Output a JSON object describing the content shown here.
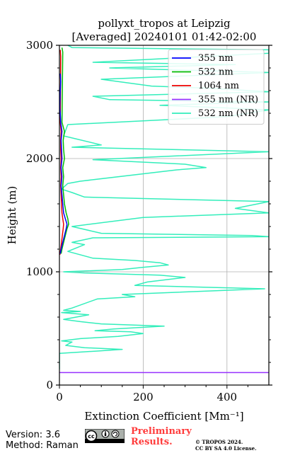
{
  "chart_data": {
    "type": "line",
    "title": "pollyxt_tropos at Leipzig",
    "subtitle": "[Averaged] 20240101 01:42-02:00",
    "xlabel": "Extinction Coefficient [Mm⁻¹]",
    "ylabel": "Height (m)",
    "xlim": [
      0,
      500
    ],
    "ylim": [
      0,
      3000
    ],
    "xticks": [
      "0",
      "200",
      "400"
    ],
    "yticks": [
      "0",
      "1000",
      "2000",
      "3000"
    ],
    "grid": true,
    "legend_position": "top-right",
    "series": [
      {
        "name": "355 nm",
        "color": "#0000ff",
        "points": [
          [
            2,
            1160
          ],
          [
            4,
            1200
          ],
          [
            8,
            1260
          ],
          [
            12,
            1320
          ],
          [
            16,
            1380
          ],
          [
            18,
            1420
          ],
          [
            14,
            1470
          ],
          [
            10,
            1520
          ],
          [
            8,
            1600
          ],
          [
            6,
            1680
          ],
          [
            4,
            1760
          ],
          [
            6,
            1840
          ],
          [
            4,
            1920
          ],
          [
            6,
            2000
          ],
          [
            5,
            2080
          ],
          [
            4,
            2160
          ],
          [
            6,
            2240
          ],
          [
            3,
            2320
          ],
          [
            2,
            2400
          ],
          [
            1,
            2450
          ],
          [
            2,
            2600
          ],
          [
            3,
            2680
          ],
          [
            2,
            2750
          ]
        ]
      },
      {
        "name": "532 nm",
        "color": "#00bb00",
        "points": [
          [
            4,
            1160
          ],
          [
            6,
            1200
          ],
          [
            10,
            1260
          ],
          [
            14,
            1320
          ],
          [
            18,
            1380
          ],
          [
            22,
            1420
          ],
          [
            20,
            1470
          ],
          [
            16,
            1520
          ],
          [
            12,
            1600
          ],
          [
            10,
            1680
          ],
          [
            8,
            1760
          ],
          [
            10,
            1840
          ],
          [
            8,
            1920
          ],
          [
            12,
            2000
          ],
          [
            10,
            2080
          ],
          [
            9,
            2160
          ],
          [
            12,
            2240
          ],
          [
            6,
            2320
          ],
          [
            8,
            2940
          ],
          [
            6,
            2980
          ]
        ]
      },
      {
        "name": "1064 nm",
        "color": "#ee0000",
        "points": [
          [
            1,
            1150
          ],
          [
            3,
            1200
          ],
          [
            5,
            1260
          ],
          [
            7,
            1320
          ],
          [
            9,
            1380
          ],
          [
            10,
            1420
          ],
          [
            8,
            1470
          ],
          [
            6,
            1520
          ],
          [
            5,
            1600
          ],
          [
            4,
            1680
          ],
          [
            3,
            1760
          ],
          [
            4,
            1840
          ],
          [
            3,
            1920
          ],
          [
            4,
            2000
          ],
          [
            3,
            2080
          ],
          [
            3,
            2160
          ],
          [
            4,
            2240
          ],
          [
            2,
            2320
          ],
          [
            3,
            2900
          ],
          [
            2,
            2960
          ]
        ]
      },
      {
        "name": "355 nm (NR)",
        "color": "#9933ff",
        "points": [
          [
            0,
            110
          ],
          [
            500,
            110
          ]
        ]
      },
      {
        "name": "532 nm (NR)",
        "color": "#33eebb",
        "points": [
          [
            0,
            140
          ],
          [
            0,
            280
          ],
          [
            90,
            300
          ],
          [
            130,
            310
          ],
          [
            150,
            315
          ],
          [
            60,
            330
          ],
          [
            15,
            350
          ],
          [
            30,
            380
          ],
          [
            5,
            390
          ],
          [
            50,
            410
          ],
          [
            140,
            430
          ],
          [
            200,
            455
          ],
          [
            170,
            470
          ],
          [
            85,
            480
          ],
          [
            130,
            495
          ],
          [
            250,
            520
          ],
          [
            100,
            540
          ],
          [
            50,
            560
          ],
          [
            10,
            580
          ],
          [
            70,
            620
          ],
          [
            5,
            640
          ],
          [
            50,
            650
          ],
          [
            10,
            660
          ],
          [
            30,
            680
          ],
          [
            90,
            760
          ],
          [
            180,
            780
          ],
          [
            150,
            800
          ],
          [
            490,
            850
          ],
          [
            180,
            880
          ],
          [
            210,
            910
          ],
          [
            300,
            950
          ],
          [
            240,
            970
          ],
          [
            60,
            990
          ],
          [
            10,
            1000
          ],
          [
            150,
            1020
          ],
          [
            200,
            1040
          ],
          [
            260,
            1060
          ],
          [
            240,
            1080
          ],
          [
            180,
            1100
          ],
          [
            80,
            1120
          ],
          [
            20,
            1180
          ],
          [
            60,
            1240
          ],
          [
            30,
            1260
          ],
          [
            80,
            1300
          ],
          [
            500,
            1310
          ],
          [
            460,
            1320
          ],
          [
            100,
            1340
          ],
          [
            30,
            1400
          ],
          [
            200,
            1480
          ],
          [
            500,
            1520
          ],
          [
            420,
            1560
          ],
          [
            500,
            1620
          ],
          [
            60,
            1660
          ],
          [
            30,
            1700
          ],
          [
            5,
            1730
          ],
          [
            20,
            1780
          ],
          [
            50,
            1800
          ],
          [
            280,
            1900
          ],
          [
            350,
            1920
          ],
          [
            300,
            1950
          ],
          [
            80,
            1990
          ],
          [
            500,
            2060
          ],
          [
            30,
            2100
          ],
          [
            100,
            2120
          ],
          [
            10,
            2200
          ],
          [
            20,
            2300
          ],
          [
            400,
            2370
          ],
          [
            500,
            2430
          ],
          [
            380,
            2450
          ],
          [
            240,
            2470
          ],
          [
            500,
            2500
          ],
          [
            120,
            2520
          ],
          [
            80,
            2550
          ],
          [
            500,
            2590
          ],
          [
            360,
            2620
          ],
          [
            220,
            2640
          ],
          [
            100,
            2700
          ],
          [
            500,
            2760
          ],
          [
            120,
            2800
          ],
          [
            420,
            2830
          ],
          [
            80,
            2850
          ],
          [
            500,
            2930
          ],
          [
            500,
            2960
          ],
          [
            30,
            2980
          ],
          [
            20,
            3000
          ]
        ]
      }
    ]
  },
  "footer": {
    "version": "Version: 3.6",
    "method": "Method: Raman",
    "prelim_line1": "Preliminary",
    "prelim_line2": "Results.",
    "copyright_line1": "© TROPOS 2024.",
    "copyright_line2": "CC BY SA 4.0 License."
  },
  "cc_badge": {
    "label": "cc",
    "icons": [
      "by-icon",
      "sa-icon"
    ]
  }
}
